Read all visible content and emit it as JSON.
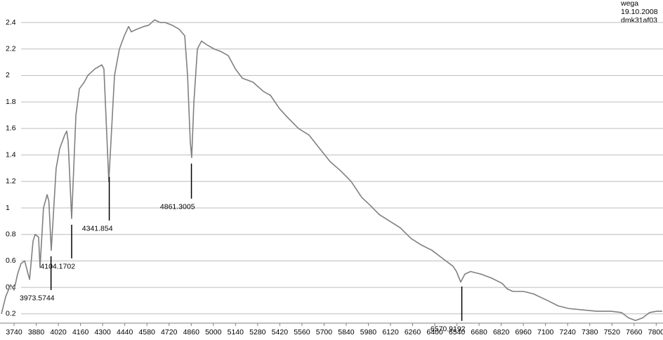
{
  "chart_data": {
    "type": "line",
    "notes": [
      "wega",
      "19.10.2008",
      "dmk31af03"
    ],
    "x": [
      3660,
      3687,
      3718,
      3740,
      3762,
      3784,
      3807,
      3829,
      3838,
      3860,
      3873,
      3895,
      3904,
      3926,
      3949,
      3960,
      3975,
      4006,
      4029,
      4060,
      4073,
      4082,
      4104,
      4131,
      4153,
      4184,
      4206,
      4251,
      4295,
      4308,
      4339,
      4375,
      4406,
      4437,
      4464,
      4481,
      4517,
      4561,
      4592,
      4628,
      4664,
      4695,
      4739,
      4783,
      4819,
      4837,
      4854,
      4863,
      4877,
      4899,
      4925,
      4961,
      5005,
      5050,
      5094,
      5139,
      5183,
      5250,
      5316,
      5361,
      5418,
      5472,
      5538,
      5605,
      5671,
      5738,
      5805,
      5871,
      5938,
      5991,
      6049,
      6115,
      6182,
      6249,
      6315,
      6382,
      6448,
      6515,
      6537,
      6564,
      6590,
      6626,
      6693,
      6759,
      6826,
      6857,
      6892,
      6959,
      7026,
      7114,
      7181,
      7248,
      7336,
      7425,
      7514,
      7581,
      7625,
      7669,
      7714,
      7758,
      7803,
      7838
    ],
    "values": [
      0.2,
      0.33,
      0.42,
      0.38,
      0.5,
      0.58,
      0.6,
      0.5,
      0.46,
      0.75,
      0.8,
      0.78,
      0.55,
      1.0,
      1.1,
      1.05,
      0.68,
      1.3,
      1.45,
      1.55,
      1.58,
      1.5,
      0.92,
      1.7,
      1.9,
      1.95,
      2.0,
      2.05,
      2.08,
      2.05,
      1.2,
      2.0,
      2.2,
      2.3,
      2.37,
      2.33,
      2.35,
      2.37,
      2.38,
      2.42,
      2.4,
      2.4,
      2.38,
      2.35,
      2.3,
      2.0,
      1.5,
      1.38,
      1.8,
      2.2,
      2.26,
      2.23,
      2.2,
      2.18,
      2.15,
      2.05,
      1.98,
      1.95,
      1.88,
      1.85,
      1.75,
      1.68,
      1.6,
      1.55,
      1.45,
      1.35,
      1.28,
      1.2,
      1.08,
      1.02,
      0.95,
      0.9,
      0.85,
      0.77,
      0.72,
      0.68,
      0.62,
      0.56,
      0.52,
      0.44,
      0.5,
      0.52,
      0.5,
      0.47,
      0.43,
      0.39,
      0.37,
      0.37,
      0.35,
      0.3,
      0.26,
      0.24,
      0.23,
      0.22,
      0.22,
      0.21,
      0.17,
      0.15,
      0.17,
      0.21,
      0.22,
      0.22
    ],
    "color": "#808080",
    "xlim": [
      3651,
      7843
    ],
    "ylim": [
      0.13,
      2.57
    ],
    "xticks": [
      3740,
      3880,
      4020,
      4160,
      4300,
      4440,
      4580,
      4720,
      4860,
      5000,
      5140,
      5280,
      5420,
      5560,
      5700,
      5840,
      5980,
      6120,
      6260,
      6400,
      6540,
      6680,
      6820,
      6960,
      7100,
      7240,
      7380,
      7520,
      7660,
      7800
    ],
    "yticks": [
      0.2,
      0.4,
      0.6,
      0.8,
      1,
      1.2,
      1.4,
      1.6,
      1.8,
      2,
      2.2,
      2.4
    ],
    "grid": true,
    "annotations": [
      {
        "value": 3973.5744,
        "y_range": [
          0.38,
          0.635
        ]
      },
      {
        "value": 4104.1702,
        "y_range": [
          0.619,
          0.873
        ]
      },
      {
        "value": 4341.854,
        "y_range": [
          0.905,
          1.234
        ]
      },
      {
        "value": 4861.3005,
        "y_range": [
          1.07,
          1.335
        ]
      },
      {
        "value": 6570.9192,
        "y_range": [
          0.147,
          0.407
        ]
      }
    ]
  }
}
